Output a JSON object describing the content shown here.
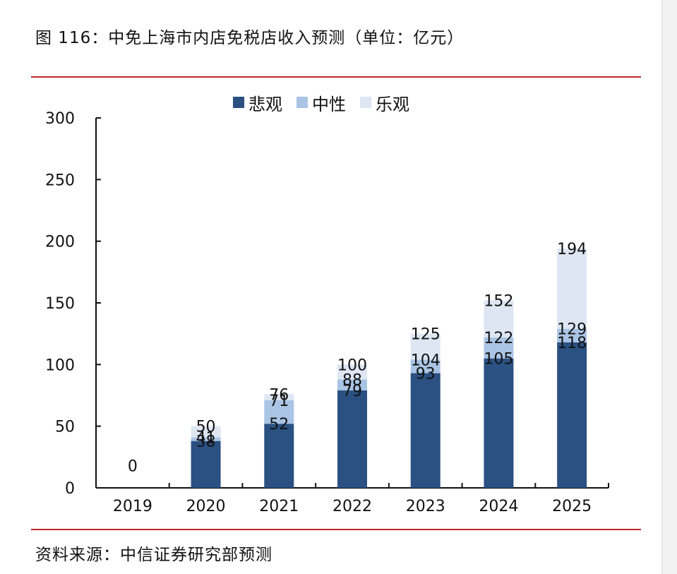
{
  "page": {
    "title": "图 116：中免上海市内店免税店收入预测（单位：亿元）",
    "source": "资料来源：中信证券研究部预测"
  },
  "colors": {
    "pessimistic": "#2b5182",
    "neutral": "#a9c4e4",
    "optimistic": "#dde6f2",
    "rule": "#c0282e",
    "axis": "#111111"
  },
  "chart_data": {
    "type": "bar",
    "title": "",
    "xlabel": "",
    "ylabel": "",
    "ylim": [
      0,
      300
    ],
    "yticks": [
      0,
      50,
      100,
      150,
      200,
      250,
      300
    ],
    "categories": [
      "2019",
      "2020",
      "2021",
      "2022",
      "2023",
      "2024",
      "2025"
    ],
    "legend_position": "top-center",
    "grid": false,
    "series": [
      {
        "name": "悲观",
        "key": "pessimistic",
        "values": [
          0,
          38,
          52,
          79,
          93,
          105,
          118
        ]
      },
      {
        "name": "中性",
        "key": "neutral",
        "values": [
          0,
          41,
          71,
          88,
          104,
          122,
          129
        ]
      },
      {
        "name": "乐观",
        "key": "optimistic",
        "values": [
          0,
          50,
          76,
          100,
          125,
          152,
          194
        ]
      }
    ],
    "data_labels": [
      {
        "category": "2019",
        "labels": [
          "0"
        ]
      },
      {
        "category": "2020",
        "labels": [
          "38",
          "41",
          "50"
        ]
      },
      {
        "category": "2021",
        "labels": [
          "52",
          "71",
          "76"
        ]
      },
      {
        "category": "2022",
        "labels": [
          "79",
          "88",
          "100"
        ]
      },
      {
        "category": "2023",
        "labels": [
          "93",
          "104",
          "125"
        ]
      },
      {
        "category": "2024",
        "labels": [
          "105",
          "122",
          "152"
        ]
      },
      {
        "category": "2025",
        "labels": [
          "118",
          "129",
          "194"
        ]
      }
    ]
  }
}
